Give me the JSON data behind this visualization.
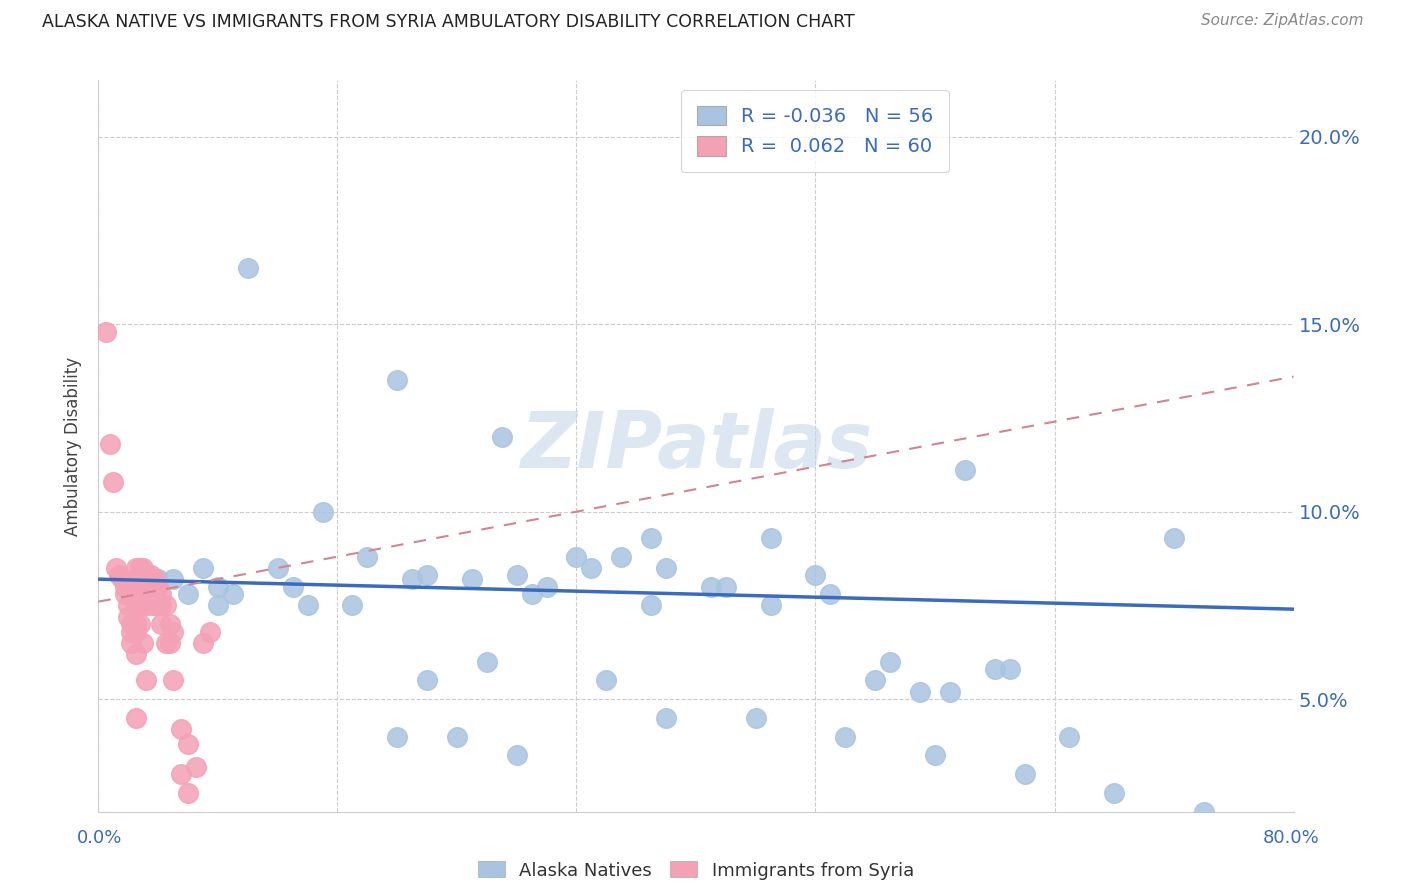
{
  "title": "ALASKA NATIVE VS IMMIGRANTS FROM SYRIA AMBULATORY DISABILITY CORRELATION CHART",
  "source": "Source: ZipAtlas.com",
  "ylabel": "Ambulatory Disability",
  "watermark": "ZIPatlas",
  "blue_R": -0.036,
  "blue_N": 56,
  "pink_R": 0.062,
  "pink_N": 60,
  "blue_color": "#a8c4e0",
  "pink_color": "#f4a0b5",
  "blue_line_color": "#3a6bbf",
  "pink_line_color": "#d4848e",
  "ytick_labels": [
    "5.0%",
    "10.0%",
    "15.0%",
    "20.0%"
  ],
  "ytick_values": [
    0.05,
    0.1,
    0.15,
    0.2
  ],
  "xtick_values": [
    0.0,
    0.16,
    0.32,
    0.48,
    0.64,
    0.8
  ],
  "xmin": 0.0,
  "xmax": 0.8,
  "ymin": 0.02,
  "ymax": 0.215,
  "blue_scatter_x": [
    0.1,
    0.2,
    0.15,
    0.27,
    0.37,
    0.45,
    0.58,
    0.72,
    0.08,
    0.12,
    0.18,
    0.22,
    0.28,
    0.32,
    0.35,
    0.38,
    0.42,
    0.48,
    0.52,
    0.55,
    0.6,
    0.65,
    0.05,
    0.07,
    0.09,
    0.13,
    0.17,
    0.21,
    0.25,
    0.29,
    0.33,
    0.37,
    0.41,
    0.45,
    0.49,
    0.53,
    0.57,
    0.61,
    0.3,
    0.26,
    0.22,
    0.34,
    0.38,
    0.44,
    0.5,
    0.56,
    0.62,
    0.68,
    0.74,
    0.04,
    0.06,
    0.08,
    0.14,
    0.2,
    0.24,
    0.28
  ],
  "blue_scatter_y": [
    0.165,
    0.135,
    0.1,
    0.12,
    0.093,
    0.093,
    0.111,
    0.093,
    0.08,
    0.085,
    0.088,
    0.083,
    0.083,
    0.088,
    0.088,
    0.085,
    0.08,
    0.083,
    0.055,
    0.052,
    0.058,
    0.04,
    0.082,
    0.085,
    0.078,
    0.08,
    0.075,
    0.082,
    0.082,
    0.078,
    0.085,
    0.075,
    0.08,
    0.075,
    0.078,
    0.06,
    0.052,
    0.058,
    0.08,
    0.06,
    0.055,
    0.055,
    0.045,
    0.045,
    0.04,
    0.035,
    0.03,
    0.025,
    0.02,
    0.082,
    0.078,
    0.075,
    0.075,
    0.04,
    0.04,
    0.035
  ],
  "pink_scatter_x": [
    0.005,
    0.008,
    0.01,
    0.012,
    0.014,
    0.016,
    0.018,
    0.018,
    0.02,
    0.02,
    0.022,
    0.022,
    0.022,
    0.025,
    0.025,
    0.025,
    0.025,
    0.025,
    0.025,
    0.025,
    0.025,
    0.025,
    0.028,
    0.028,
    0.028,
    0.028,
    0.028,
    0.03,
    0.03,
    0.03,
    0.03,
    0.03,
    0.032,
    0.032,
    0.032,
    0.032,
    0.035,
    0.035,
    0.035,
    0.038,
    0.038,
    0.038,
    0.04,
    0.04,
    0.042,
    0.042,
    0.042,
    0.045,
    0.045,
    0.048,
    0.048,
    0.05,
    0.05,
    0.055,
    0.055,
    0.06,
    0.06,
    0.065,
    0.07,
    0.075
  ],
  "pink_scatter_y": [
    0.148,
    0.118,
    0.108,
    0.085,
    0.083,
    0.082,
    0.08,
    0.078,
    0.075,
    0.072,
    0.07,
    0.068,
    0.065,
    0.085,
    0.082,
    0.08,
    0.078,
    0.075,
    0.07,
    0.068,
    0.062,
    0.045,
    0.085,
    0.083,
    0.08,
    0.075,
    0.07,
    0.085,
    0.082,
    0.078,
    0.075,
    0.065,
    0.083,
    0.08,
    0.075,
    0.055,
    0.083,
    0.08,
    0.075,
    0.082,
    0.078,
    0.075,
    0.08,
    0.075,
    0.078,
    0.075,
    0.07,
    0.075,
    0.065,
    0.07,
    0.065,
    0.068,
    0.055,
    0.042,
    0.03,
    0.038,
    0.025,
    0.032,
    0.065,
    0.068
  ],
  "blue_trend_x": [
    0.0,
    0.8
  ],
  "blue_trend_y": [
    0.082,
    0.074
  ],
  "pink_trend_x": [
    0.0,
    0.8
  ],
  "pink_trend_y": [
    0.076,
    0.136
  ]
}
